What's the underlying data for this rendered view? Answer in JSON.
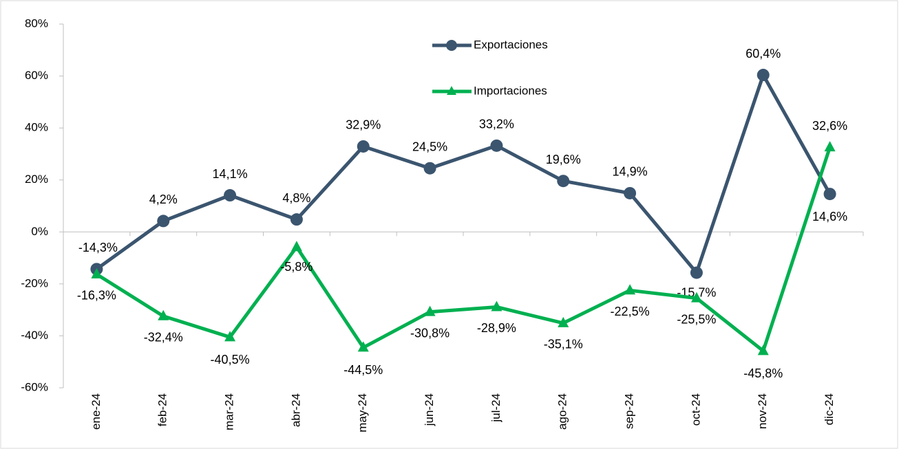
{
  "chart_data": {
    "type": "line",
    "categories": [
      "ene-24",
      "feb-24",
      "mar-24",
      "abr-24",
      "may-24",
      "jun-24",
      "jul-24",
      "ago-24",
      "sep-24",
      "oct-24",
      "nov-24",
      "dic-24"
    ],
    "series": [
      {
        "name": "Exportaciones",
        "color": "#3b556f",
        "marker": "circle",
        "values": [
          -14.3,
          4.2,
          14.1,
          4.8,
          32.9,
          24.5,
          33.2,
          19.6,
          14.9,
          -15.7,
          60.4,
          14.6
        ],
        "value_labels": [
          "-14,3%",
          "4,2%",
          "14,1%",
          "4,8%",
          "32,9%",
          "24,5%",
          "33,2%",
          "19,6%",
          "14,9%",
          "-15,7%",
          "60,4%",
          "14,6%"
        ]
      },
      {
        "name": "Importaciones",
        "color": "#00b050",
        "marker": "triangle",
        "values": [
          -16.3,
          -32.4,
          -40.5,
          -5.8,
          -44.5,
          -30.8,
          -28.9,
          -35.1,
          -22.5,
          -25.5,
          -45.8,
          32.6
        ],
        "value_labels": [
          "-16,3%",
          "-32,4%",
          "-40,5%",
          "-5,8%",
          "-44,5%",
          "-30,8%",
          "-28,9%",
          "-35,1%",
          "-22,5%",
          "-25,5%",
          "-45,8%",
          "32,6%"
        ]
      }
    ],
    "ylim": [
      -60,
      80
    ],
    "yticks": [
      {
        "value": -60,
        "label": "-60%"
      },
      {
        "value": -40,
        "label": "-40%"
      },
      {
        "value": -20,
        "label": "-20%"
      },
      {
        "value": 0,
        "label": "0%"
      },
      {
        "value": 20,
        "label": "20%"
      },
      {
        "value": 40,
        "label": "40%"
      },
      {
        "value": 60,
        "label": "60%"
      },
      {
        "value": 80,
        "label": "80%"
      }
    ],
    "grid": false
  }
}
